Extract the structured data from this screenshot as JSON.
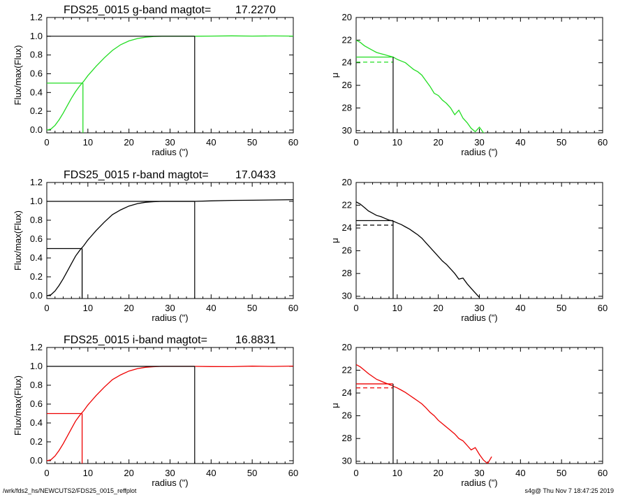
{
  "footer": {
    "path": "/wrk/fds2_hs/NEWCUTS2/FDS25_0015_reffplot",
    "stamp": "s4g@  Thu Nov  7 18:47:25 2019"
  },
  "chart_data": [
    {
      "type": "line",
      "panel": "growth",
      "band": "g",
      "title_prefix": "FDS25_0015 g-band  magtot=",
      "title_value": "17.2270",
      "xlabel": "radius (\")",
      "ylabel": "Flux/max(Flux)",
      "xlim": [
        0,
        60
      ],
      "ylim": [
        -0.03,
        1.2
      ],
      "xticks": [
        "0",
        "10",
        "20",
        "30",
        "40",
        "50",
        "60"
      ],
      "yticks": [
        "0.0",
        "0.2",
        "0.4",
        "0.6",
        "0.8",
        "1.0",
        "1.2"
      ],
      "color": "#22dd22",
      "series": [
        {
          "x": [
            0,
            1,
            2,
            3,
            4,
            5,
            6,
            7,
            8,
            9,
            10,
            12,
            14,
            16,
            18,
            20,
            22,
            24,
            26,
            28,
            30,
            32,
            34,
            36,
            40,
            45,
            50,
            55,
            60
          ],
          "y": [
            0.0,
            0.01,
            0.05,
            0.11,
            0.18,
            0.26,
            0.34,
            0.41,
            0.47,
            0.52,
            0.58,
            0.68,
            0.77,
            0.85,
            0.91,
            0.95,
            0.975,
            0.99,
            0.997,
            1.0,
            1.0,
            1.0,
            1.0,
            1.0,
            1.002,
            1.004,
            1.002,
            1.003,
            1.002
          ]
        }
      ],
      "half_light": {
        "x": 8.8,
        "y": 0.5
      },
      "total": {
        "x": 36,
        "y": 1.0
      }
    },
    {
      "type": "line",
      "panel": "profile",
      "band": "g",
      "xlabel": "radius (\")",
      "ylabel": "μ",
      "xlim": [
        0,
        60
      ],
      "ylim": [
        30.2,
        20
      ],
      "xticks": [
        "0",
        "10",
        "20",
        "30",
        "40",
        "50",
        "60"
      ],
      "yticks": [
        "20",
        "22",
        "24",
        "26",
        "28",
        "30"
      ],
      "color": "#22dd22",
      "series": [
        {
          "x": [
            0,
            1,
            2,
            3,
            4,
            5,
            6,
            7,
            8,
            9,
            10,
            11,
            12,
            13,
            14,
            15,
            16,
            17,
            18,
            19,
            20,
            21,
            22,
            23,
            24,
            25,
            26,
            27,
            28,
            29,
            30,
            31,
            32
          ],
          "y": [
            22.0,
            22.2,
            22.5,
            22.7,
            22.9,
            23.1,
            23.2,
            23.3,
            23.4,
            23.5,
            23.7,
            23.85,
            24.0,
            24.3,
            24.6,
            24.8,
            25.1,
            25.6,
            26.1,
            26.7,
            26.9,
            27.3,
            27.6,
            28.0,
            28.6,
            28.2,
            28.9,
            29.3,
            29.8,
            30.1,
            29.7,
            30.2,
            30.3
          ]
        }
      ],
      "mu_eff": 23.5,
      "mu_mean_eff": 23.95,
      "r_eff": 9
    },
    {
      "type": "line",
      "panel": "growth",
      "band": "r",
      "title_prefix": "FDS25_0015 r-band  magtot=",
      "title_value": "17.0433",
      "xlabel": "radius (\")",
      "ylabel": "Flux/max(Flux)",
      "xlim": [
        0,
        60
      ],
      "ylim": [
        -0.03,
        1.2
      ],
      "xticks": [
        "0",
        "10",
        "20",
        "30",
        "40",
        "50",
        "60"
      ],
      "yticks": [
        "0.0",
        "0.2",
        "0.4",
        "0.6",
        "0.8",
        "1.0",
        "1.2"
      ],
      "color": "#000000",
      "series": [
        {
          "x": [
            0,
            1,
            2,
            3,
            4,
            5,
            6,
            7,
            8,
            9,
            10,
            12,
            14,
            16,
            18,
            20,
            22,
            24,
            26,
            28,
            30,
            32,
            34,
            36,
            40,
            45,
            50,
            55,
            60
          ],
          "y": [
            0.0,
            0.01,
            0.05,
            0.11,
            0.18,
            0.26,
            0.34,
            0.42,
            0.48,
            0.53,
            0.59,
            0.69,
            0.78,
            0.86,
            0.91,
            0.95,
            0.975,
            0.99,
            0.996,
            1.0,
            1.0,
            1.0,
            1.0,
            1.0,
            1.005,
            1.01,
            1.012,
            1.015,
            1.018
          ]
        }
      ],
      "half_light": {
        "x": 8.6,
        "y": 0.5
      },
      "total": {
        "x": 36,
        "y": 1.0
      }
    },
    {
      "type": "line",
      "panel": "profile",
      "band": "r",
      "xlabel": "radius (\")",
      "ylabel": "μ",
      "xlim": [
        0,
        60
      ],
      "ylim": [
        30.2,
        20
      ],
      "xticks": [
        "0",
        "10",
        "20",
        "30",
        "40",
        "50",
        "60"
      ],
      "yticks": [
        "20",
        "22",
        "24",
        "26",
        "28",
        "30"
      ],
      "color": "#000000",
      "series": [
        {
          "x": [
            0,
            1,
            2,
            3,
            4,
            5,
            6,
            7,
            8,
            9,
            10,
            11,
            12,
            13,
            14,
            15,
            16,
            17,
            18,
            19,
            20,
            21,
            22,
            23,
            24,
            25,
            26,
            27,
            28,
            29,
            30
          ],
          "y": [
            21.7,
            21.9,
            22.2,
            22.5,
            22.7,
            22.9,
            23.0,
            23.15,
            23.3,
            23.4,
            23.55,
            23.7,
            23.9,
            24.1,
            24.35,
            24.6,
            24.9,
            25.3,
            25.7,
            26.1,
            26.5,
            26.9,
            27.2,
            27.6,
            28.0,
            28.5,
            28.4,
            28.9,
            29.3,
            29.7,
            30.1
          ]
        }
      ],
      "mu_eff": 23.35,
      "mu_mean_eff": 23.75,
      "r_eff": 9
    },
    {
      "type": "line",
      "panel": "growth",
      "band": "i",
      "title_prefix": "FDS25_0015 i-band  magtot=",
      "title_value": "16.8831",
      "xlabel": "radius (\")",
      "ylabel": "Flux/max(Flux)",
      "xlim": [
        0,
        60
      ],
      "ylim": [
        -0.03,
        1.2
      ],
      "xticks": [
        "0",
        "10",
        "20",
        "30",
        "40",
        "50",
        "60"
      ],
      "yticks": [
        "0.0",
        "0.2",
        "0.4",
        "0.6",
        "0.8",
        "1.0",
        "1.2"
      ],
      "color": "#ee0000",
      "series": [
        {
          "x": [
            0,
            1,
            2,
            3,
            4,
            5,
            6,
            7,
            8,
            9,
            10,
            12,
            14,
            16,
            18,
            20,
            22,
            24,
            26,
            28,
            30,
            32,
            34,
            36,
            40,
            45,
            50,
            55,
            60
          ],
          "y": [
            0.0,
            0.01,
            0.05,
            0.11,
            0.18,
            0.26,
            0.34,
            0.42,
            0.48,
            0.53,
            0.59,
            0.69,
            0.78,
            0.86,
            0.91,
            0.95,
            0.975,
            0.99,
            0.996,
            1.0,
            1.0,
            1.0,
            1.0,
            1.0,
            0.998,
            0.997,
            1.002,
            0.999,
            1.003
          ]
        }
      ],
      "half_light": {
        "x": 8.6,
        "y": 0.5
      },
      "total": {
        "x": 36,
        "y": 1.0
      }
    },
    {
      "type": "line",
      "panel": "profile",
      "band": "i",
      "xlabel": "radius (\")",
      "ylabel": "μ",
      "xlim": [
        0,
        60
      ],
      "ylim": [
        30.2,
        20
      ],
      "xticks": [
        "0",
        "10",
        "20",
        "30",
        "40",
        "50",
        "60"
      ],
      "yticks": [
        "20",
        "22",
        "24",
        "26",
        "28",
        "30"
      ],
      "color": "#ee0000",
      "series": [
        {
          "x": [
            0,
            1,
            2,
            3,
            4,
            5,
            6,
            7,
            8,
            9,
            10,
            11,
            12,
            13,
            14,
            15,
            16,
            17,
            18,
            19,
            20,
            21,
            22,
            23,
            24,
            25,
            26,
            27,
            28,
            29,
            30,
            31,
            32,
            33
          ],
          "y": [
            21.5,
            21.7,
            22.0,
            22.3,
            22.55,
            22.8,
            22.95,
            23.1,
            23.25,
            23.4,
            23.55,
            23.75,
            23.95,
            24.2,
            24.45,
            24.7,
            24.95,
            25.3,
            25.7,
            26.0,
            26.4,
            26.7,
            27.0,
            27.3,
            27.6,
            28.0,
            28.2,
            28.6,
            29.0,
            28.8,
            29.4,
            29.9,
            30.2,
            29.6
          ]
        }
      ],
      "mu_eff": 23.2,
      "mu_mean_eff": 23.55,
      "r_eff": 9
    }
  ]
}
